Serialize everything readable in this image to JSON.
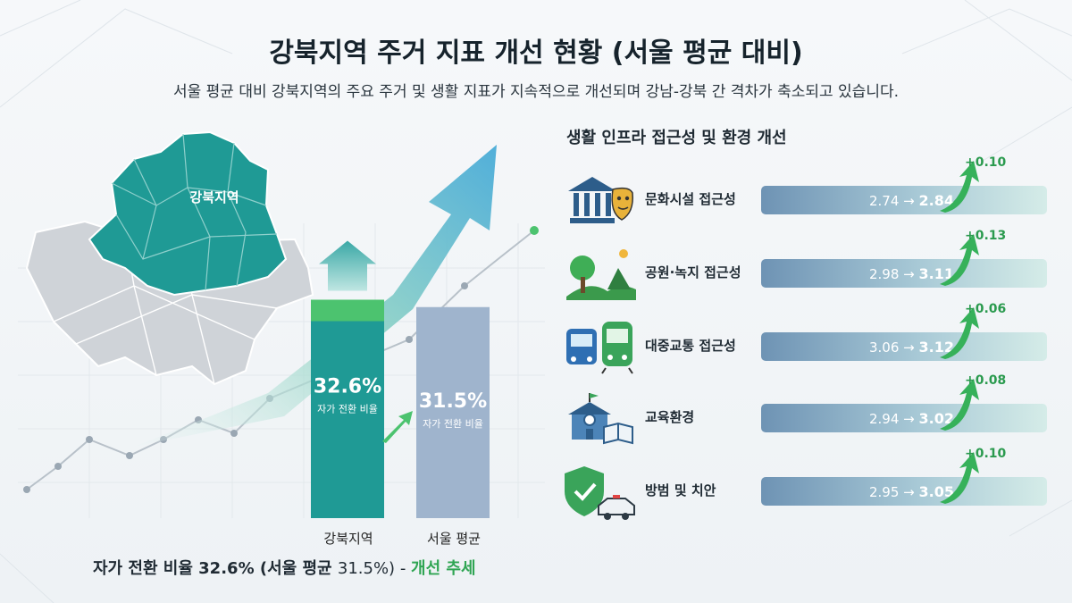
{
  "title": "강북지역 주거 지표 개선 현황 (서울 평균 대비)",
  "subtitle": "서울 평균 대비 강북지역의 주요 주거 및 생활 지표가 지속적으로 개선되며 강남-강북 간 격차가 축소되고 있습니다.",
  "map_label": "강북지역",
  "colors": {
    "teal": "#1f9a95",
    "teal_dark": "#177f7b",
    "green": "#4cc36f",
    "gray_blue": "#9fb4cd",
    "delta_green": "#2a9a4e"
  },
  "chart_data": [
    {
      "type": "bar",
      "categories": [
        "강북지역",
        "서울 평균"
      ],
      "values": [
        32.6,
        31.5
      ],
      "value_labels": [
        "32.6%",
        "31.5%"
      ],
      "bar_sublabels": [
        "자가 전환 비율",
        "자가 전환 비율"
      ],
      "footer": {
        "part1": "자가 전환 비율 32.6% (서울 평균 ",
        "part2": "31.5%)",
        "part3": " - ",
        "part4": "개선 추세"
      }
    },
    {
      "type": "bar",
      "title": "생활 인프라 접근성 및 환경 개선",
      "categories": [
        "문화시설 접근성",
        "공원·녹지 접근성",
        "대중교통 접근성",
        "교육환경",
        "방범 및 치안"
      ],
      "series": [
        {
          "values": [
            2.74,
            2.98,
            3.06,
            2.94,
            2.95
          ]
        },
        {
          "values": [
            2.84,
            3.11,
            3.12,
            3.02,
            3.05
          ]
        }
      ],
      "deltas": [
        "+0.10",
        "+0.13",
        "+0.06",
        "+0.08",
        "+0.10"
      ],
      "icons": [
        "museum-theater-icon",
        "park-tree-icon",
        "bus-train-icon",
        "school-book-icon",
        "shield-police-icon"
      ]
    }
  ],
  "rows": [
    {
      "label": "문화시설 접근성",
      "from": "2.74",
      "to": "2.84",
      "delta": "+0.10"
    },
    {
      "label": "공원·녹지 접근성",
      "from": "2.98",
      "to": "3.11",
      "delta": "+0.13"
    },
    {
      "label": "대중교통 접근성",
      "from": "3.06",
      "to": "3.12",
      "delta": "+0.06"
    },
    {
      "label": "교육환경",
      "from": "2.94",
      "to": "3.02",
      "delta": "+0.08"
    },
    {
      "label": "방범 및 치안",
      "from": "2.95",
      "to": "3.05",
      "delta": "+0.10"
    }
  ]
}
